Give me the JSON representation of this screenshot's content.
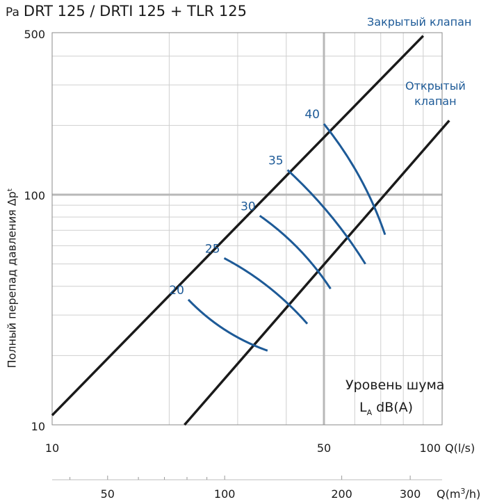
{
  "chart_data": {
    "type": "line",
    "title": "DRT 125 / DRTI 125 + TLR 125",
    "y_unit": "Pa",
    "ylabel": "Полный перепад давления Δpᵗ",
    "xlabel_ls": "Q(l/s)",
    "xlabel_m3h_pre": "Q(m",
    "xlabel_m3h_sup": "3",
    "xlabel_m3h_post": "/h)",
    "x_scale": "log",
    "y_scale": "log",
    "xlim": [
      10,
      100
    ],
    "ylim": [
      10,
      500
    ],
    "grid": true,
    "x_ticks_ls": [
      "10",
      "50",
      "100"
    ],
    "x_ticks_m3h": [
      "50",
      "100",
      "200",
      "300"
    ],
    "y_ticks": [
      "10",
      "100",
      "500"
    ],
    "closed_label": "Закрытый клапан",
    "open_label_1": "Открытый",
    "open_label_2": "клапан",
    "legend_line1": "Уровень шума",
    "legend_line2_pre": "L",
    "legend_line2_sub": "A",
    "legend_line2_post": " dB(A)",
    "series": [
      {
        "name": "Закрытый клапан",
        "x": [
          10,
          90
        ],
        "y": [
          11,
          490
        ]
      },
      {
        "name": "Открытый клапан",
        "x": [
          21.9,
          105
        ],
        "y": [
          10,
          210
        ]
      },
      {
        "name": "20",
        "x": [
          22.4,
          35.8
        ],
        "y": [
          35,
          21
        ]
      },
      {
        "name": "25",
        "x": [
          27.7,
          45.3
        ],
        "y": [
          53,
          27.5
        ]
      },
      {
        "name": "30",
        "x": [
          34.2,
          52.0
        ],
        "y": [
          81,
          39
        ]
      },
      {
        "name": "35",
        "x": [
          40.3,
          63.9
        ],
        "y": [
          128,
          50
        ]
      },
      {
        "name": "40",
        "x": [
          50.0,
          71.8
        ],
        "y": [
          203,
          67
        ]
      }
    ],
    "noise_labels": [
      "20",
      "25",
      "30",
      "35",
      "40"
    ],
    "colors": {
      "valve_line": "#1a1a1a",
      "noise_curve": "#1d5a97",
      "grid": "#cfcfcf",
      "major_grid": "#b8b8b8"
    }
  }
}
